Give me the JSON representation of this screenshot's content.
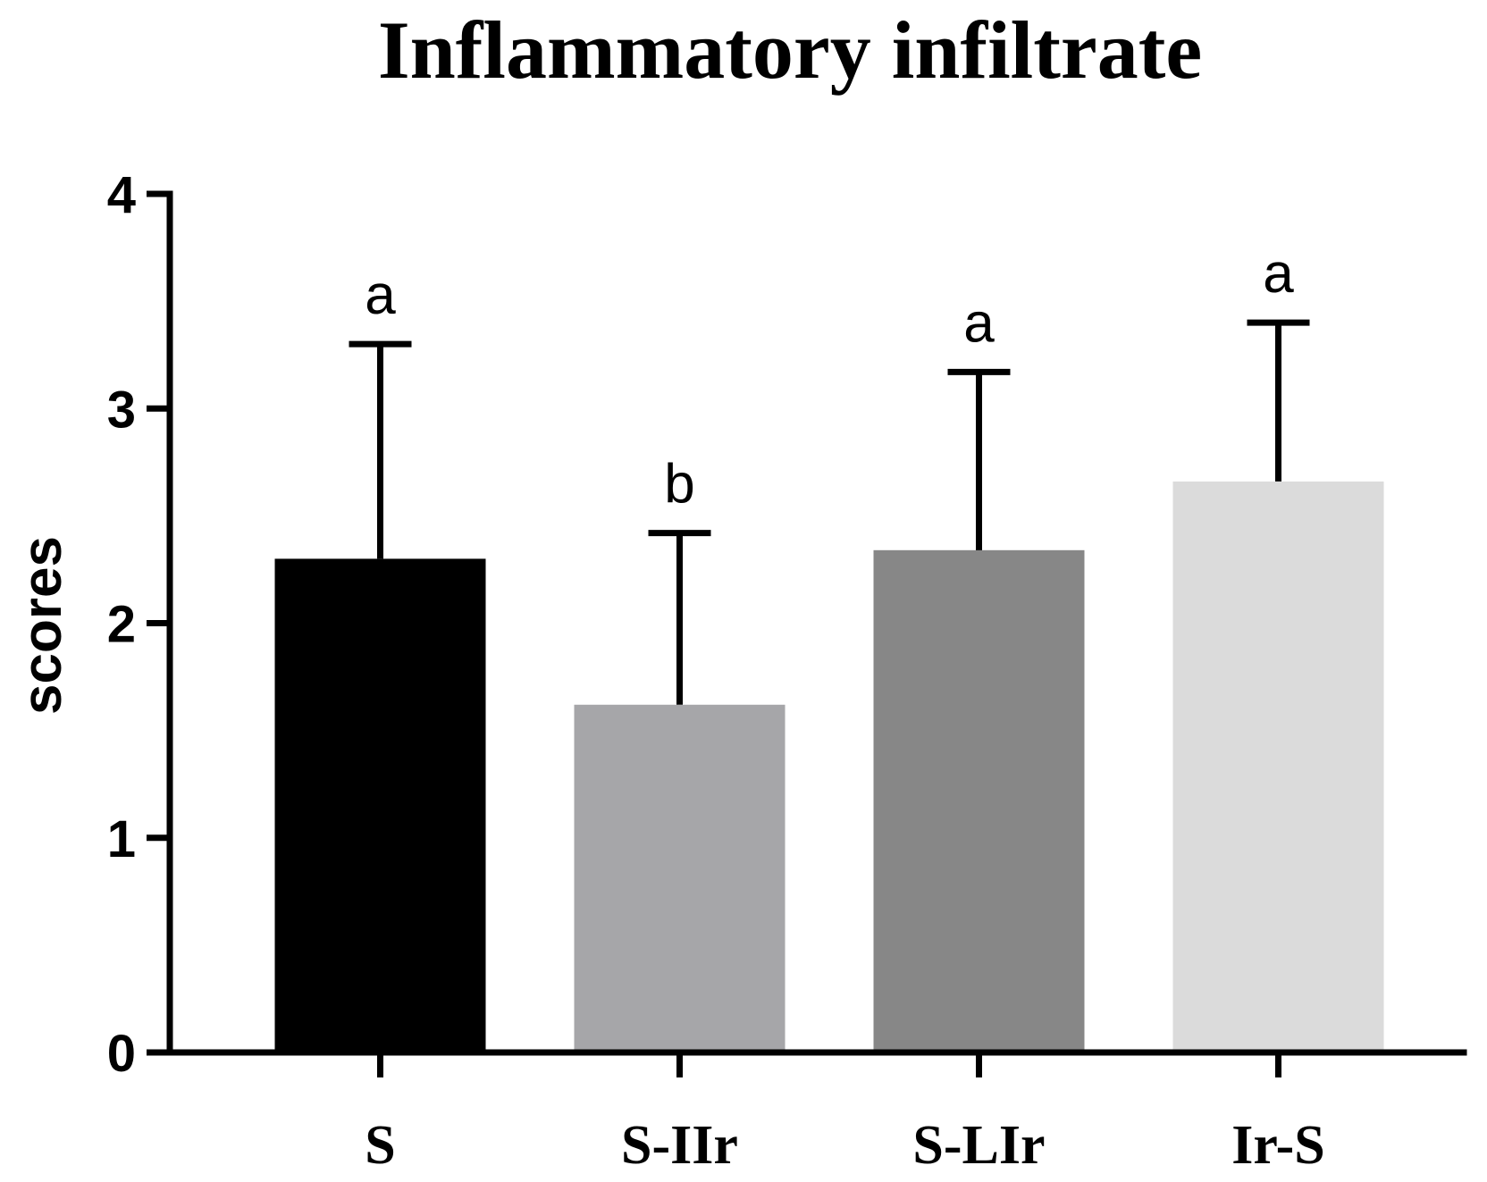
{
  "chart_data": {
    "type": "bar",
    "title": "Inflammatory infiltrate",
    "xlabel": "",
    "ylabel": "scores",
    "ylim": [
      0,
      4
    ],
    "yticks": [
      "0",
      "1",
      "2",
      "3",
      "4"
    ],
    "grid": false,
    "legend": "none",
    "categories": [
      "S",
      "S-IIr",
      "S-LIr",
      "Ir-S"
    ],
    "values": [
      2.3,
      1.62,
      2.34,
      2.66
    ],
    "errors": [
      1.0,
      0.8,
      0.83,
      0.74
    ],
    "significance": [
      "a",
      "b",
      "a",
      "a"
    ],
    "colors": [
      "#000000",
      "#a6a6a9",
      "#878787",
      "#dbdbdb"
    ]
  }
}
